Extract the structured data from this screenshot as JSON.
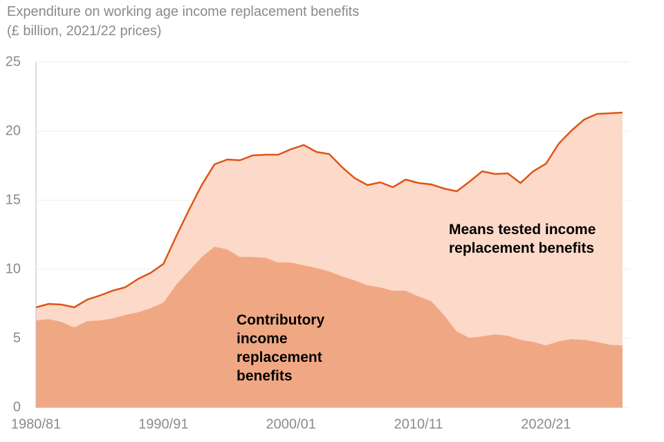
{
  "chart_data": {
    "type": "stacked_area",
    "title": "Expenditure on working age income replacement benefits",
    "subtitle": "(£ billion, 2021/22 prices)",
    "categories": [
      "1980/81",
      null,
      null,
      null,
      null,
      null,
      null,
      null,
      null,
      null,
      "1990/91",
      null,
      null,
      null,
      null,
      null,
      null,
      null,
      null,
      null,
      "2000/01",
      null,
      null,
      null,
      null,
      null,
      null,
      null,
      null,
      null,
      "2010/11",
      null,
      null,
      null,
      null,
      null,
      null,
      null,
      null,
      null,
      "2020/21",
      null,
      null,
      null,
      null,
      null,
      null
    ],
    "series": [
      {
        "name": "Contributory income replacement benefits",
        "color": "#f0a884",
        "values": [
          6.3,
          6.4,
          6.2,
          5.8,
          6.25,
          6.3,
          6.45,
          6.7,
          6.9,
          7.2,
          7.6,
          8.9,
          9.9,
          10.9,
          11.65,
          11.45,
          10.9,
          10.9,
          10.85,
          10.5,
          10.5,
          10.3,
          10.1,
          9.85,
          9.5,
          9.2,
          8.85,
          8.7,
          8.45,
          8.45,
          8.05,
          7.7,
          6.7,
          5.5,
          5.05,
          5.15,
          5.3,
          5.2,
          4.9,
          4.75,
          4.5,
          4.8,
          4.95,
          4.9,
          4.75,
          4.55,
          4.5
        ]
      },
      {
        "name": "Means tested income replacement benefits",
        "color": "#fcd9c8",
        "values": [
          0.95,
          1.1,
          1.25,
          1.45,
          1.55,
          1.8,
          2.0,
          2.0,
          2.4,
          2.55,
          2.8,
          3.5,
          4.4,
          5.2,
          5.95,
          6.5,
          7.0,
          7.35,
          7.45,
          7.8,
          8.2,
          8.7,
          8.4,
          8.5,
          7.9,
          7.4,
          7.25,
          7.6,
          7.5,
          8.05,
          8.2,
          8.45,
          9.15,
          10.15,
          11.3,
          11.95,
          11.6,
          11.75,
          11.35,
          12.35,
          13.15,
          14.3,
          15.1,
          15.95,
          16.5,
          16.75,
          16.85
        ]
      }
    ],
    "line_color": "#dd5516",
    "ylim": [
      0,
      25
    ],
    "yticks": [
      0,
      5,
      10,
      15,
      20,
      25
    ],
    "grid": true
  }
}
